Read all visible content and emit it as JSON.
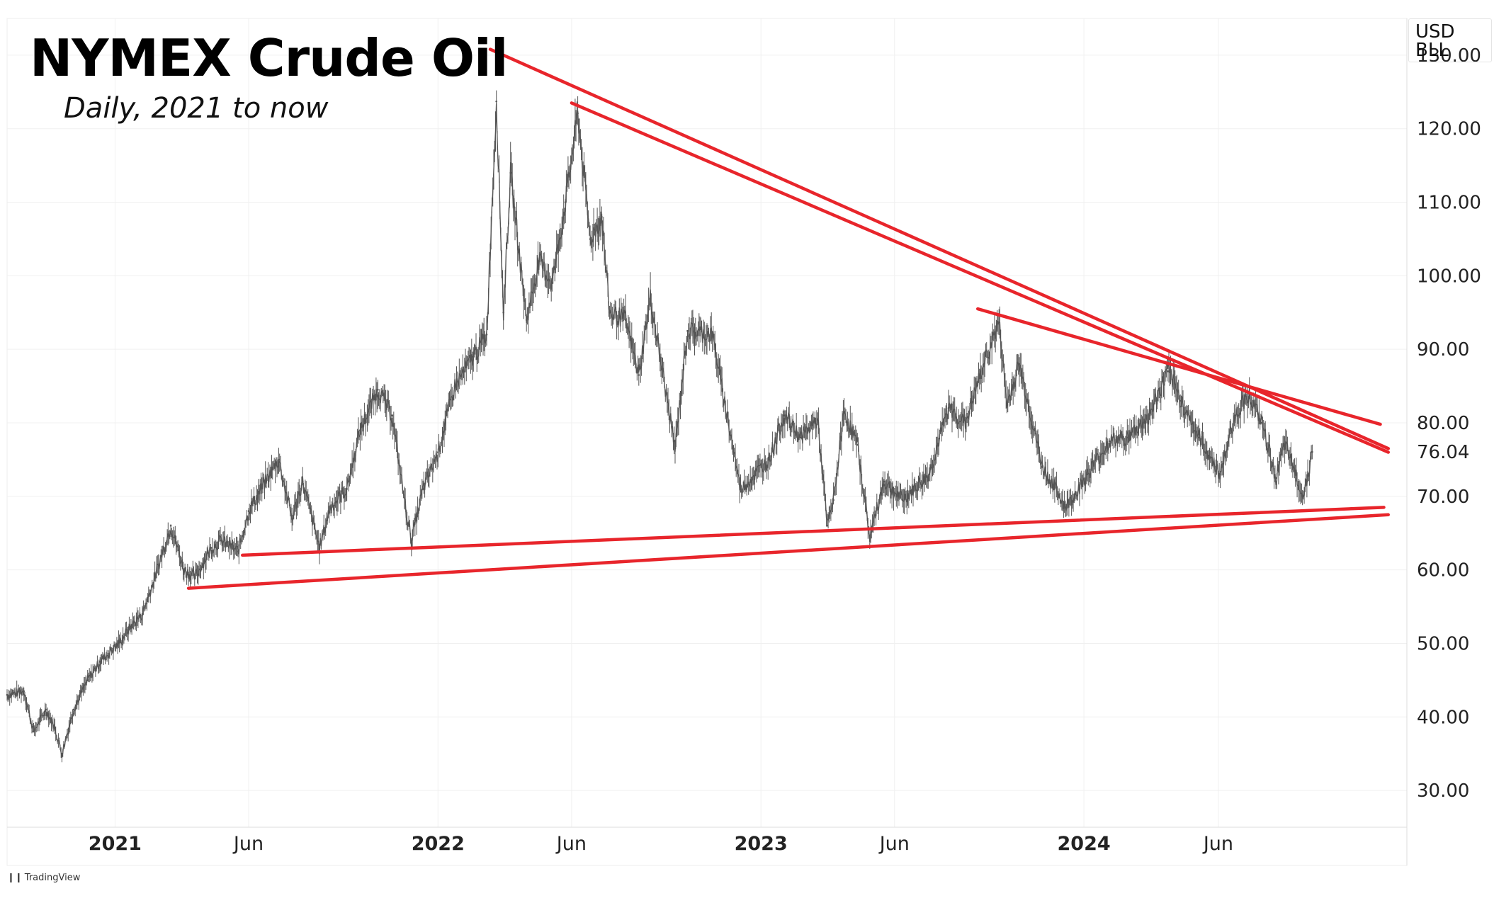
{
  "header": {
    "title": "NYMEX Crude Oil",
    "subtitle": "Daily, 2021 to now",
    "unit_line1": "USD",
    "unit_line2": "BLL"
  },
  "footer": {
    "logo": "❙❙",
    "brand": "TradingView"
  },
  "colors": {
    "price": "#555555",
    "trendline": "#e8252b",
    "grid": "#f0f0f0"
  },
  "chart_data": {
    "type": "line",
    "ylim": [
      25,
      135
    ],
    "xlim": [
      "2020-09-01",
      "2024-12-31"
    ],
    "grid": true,
    "yticks": [
      {
        "value": 130,
        "label": "130.00"
      },
      {
        "value": 120,
        "label": "120.00"
      },
      {
        "value": 110,
        "label": "110.00"
      },
      {
        "value": 100,
        "label": "100.00"
      },
      {
        "value": 90,
        "label": "90.00"
      },
      {
        "value": 80,
        "label": "80.00"
      },
      {
        "value": 70,
        "label": "70.00"
      },
      {
        "value": 60,
        "label": "60.00"
      },
      {
        "value": 50,
        "label": "50.00"
      },
      {
        "value": 40,
        "label": "40.00"
      },
      {
        "value": 30,
        "label": "30.00"
      }
    ],
    "xticks": [
      {
        "date": "2021-01-01",
        "label": "2021",
        "year": true
      },
      {
        "date": "2021-06-01",
        "label": "Jun",
        "year": false
      },
      {
        "date": "2022-01-01",
        "label": "2022",
        "year": true
      },
      {
        "date": "2022-06-01",
        "label": "Jun",
        "year": false
      },
      {
        "date": "2023-01-01",
        "label": "2023",
        "year": true
      },
      {
        "date": "2023-06-01",
        "label": "Jun",
        "year": false
      },
      {
        "date": "2024-01-01",
        "label": "2024",
        "year": true
      },
      {
        "date": "2024-06-01",
        "label": "Jun",
        "year": false
      }
    ],
    "last_price": {
      "value": 76.04,
      "label": "76.04"
    },
    "series": [
      {
        "values": [
          [
            "2020-09-01",
            43.0
          ],
          [
            "2020-09-20",
            43.5
          ],
          [
            "2020-10-01",
            38.0
          ],
          [
            "2020-10-15",
            41.0
          ],
          [
            "2020-10-25",
            38.5
          ],
          [
            "2020-11-02",
            35.0
          ],
          [
            "2020-11-15",
            41.0
          ],
          [
            "2020-12-01",
            45.0
          ],
          [
            "2020-12-15",
            47.5
          ],
          [
            "2021-01-05",
            50.0
          ],
          [
            "2021-01-20",
            52.5
          ],
          [
            "2021-02-01",
            54.0
          ],
          [
            "2021-02-15",
            59.0
          ],
          [
            "2021-03-05",
            66.0
          ],
          [
            "2021-03-20",
            60.0
          ],
          [
            "2021-04-01",
            59.0
          ],
          [
            "2021-04-20",
            63.0
          ],
          [
            "2021-05-01",
            64.0
          ],
          [
            "2021-05-20",
            62.5
          ],
          [
            "2021-06-01",
            68.0
          ],
          [
            "2021-06-20",
            72.0
          ],
          [
            "2021-07-05",
            75.0
          ],
          [
            "2021-07-20",
            67.0
          ],
          [
            "2021-08-01",
            72.0
          ],
          [
            "2021-08-20",
            63.0
          ],
          [
            "2021-09-01",
            68.5
          ],
          [
            "2021-09-20",
            71.0
          ],
          [
            "2021-10-05",
            79.0
          ],
          [
            "2021-10-25",
            84.5
          ],
          [
            "2021-11-10",
            81.0
          ],
          [
            "2021-11-26",
            68.0
          ],
          [
            "2021-12-02",
            64.0
          ],
          [
            "2021-12-15",
            71.0
          ],
          [
            "2022-01-01",
            76.0
          ],
          [
            "2022-01-20",
            85.0
          ],
          [
            "2022-02-10",
            89.0
          ],
          [
            "2022-02-25",
            92.0
          ],
          [
            "2022-03-08",
            123.7
          ],
          [
            "2022-03-16",
            95.0
          ],
          [
            "2022-03-24",
            114.0
          ],
          [
            "2022-04-11",
            94.0
          ],
          [
            "2022-04-25",
            102.0
          ],
          [
            "2022-05-10",
            99.0
          ],
          [
            "2022-05-25",
            110.0
          ],
          [
            "2022-06-08",
            122.1
          ],
          [
            "2022-06-22",
            105.0
          ],
          [
            "2022-07-05",
            108.0
          ],
          [
            "2022-07-14",
            95.0
          ],
          [
            "2022-08-01",
            94.0
          ],
          [
            "2022-08-16",
            86.5
          ],
          [
            "2022-08-29",
            97.0
          ],
          [
            "2022-09-26",
            76.5
          ],
          [
            "2022-10-10",
            92.5
          ],
          [
            "2022-11-07",
            92.0
          ],
          [
            "2022-12-09",
            71.0
          ],
          [
            "2023-01-10",
            75.0
          ],
          [
            "2023-01-27",
            81.0
          ],
          [
            "2023-02-15",
            78.0
          ],
          [
            "2023-03-06",
            80.5
          ],
          [
            "2023-03-17",
            66.0
          ],
          [
            "2023-03-24",
            69.5
          ],
          [
            "2023-04-05",
            81.5
          ],
          [
            "2023-04-20",
            77.0
          ],
          [
            "2023-05-04",
            64.5
          ],
          [
            "2023-05-20",
            72.0
          ],
          [
            "2023-06-10",
            69.5
          ],
          [
            "2023-07-10",
            73.0
          ],
          [
            "2023-08-01",
            82.0
          ],
          [
            "2023-08-20",
            80.0
          ],
          [
            "2023-09-10",
            88.0
          ],
          [
            "2023-09-27",
            93.7
          ],
          [
            "2023-10-06",
            82.5
          ],
          [
            "2023-10-20",
            88.0
          ],
          [
            "2023-11-15",
            74.0
          ],
          [
            "2023-12-12",
            68.5
          ],
          [
            "2024-01-05",
            73.0
          ],
          [
            "2024-01-30",
            77.5
          ],
          [
            "2024-02-20",
            78.0
          ],
          [
            "2024-03-15",
            81.0
          ],
          [
            "2024-04-05",
            87.0
          ],
          [
            "2024-04-20",
            83.0
          ],
          [
            "2024-05-10",
            78.0
          ],
          [
            "2024-06-03",
            73.0
          ],
          [
            "2024-06-20",
            81.0
          ],
          [
            "2024-07-05",
            84.0
          ],
          [
            "2024-07-20",
            80.0
          ],
          [
            "2024-08-05",
            72.5
          ],
          [
            "2024-08-15",
            77.0
          ],
          [
            "2024-08-26",
            73.5
          ],
          [
            "2024-09-05",
            70.0
          ],
          [
            "2024-09-15",
            76.04
          ]
        ]
      }
    ],
    "trendlines": [
      {
        "from": [
          "2022-03-01",
          130.8
        ],
        "to": [
          "2024-12-10",
          76.5
        ]
      },
      {
        "from": [
          "2022-06-01",
          123.5
        ],
        "to": [
          "2024-12-10",
          76.0
        ]
      },
      {
        "from": [
          "2023-09-03",
          95.5
        ],
        "to": [
          "2024-12-01",
          79.8
        ]
      },
      {
        "from": [
          "2021-05-25",
          62.0
        ],
        "to": [
          "2024-12-05",
          68.5
        ]
      },
      {
        "from": [
          "2021-03-25",
          57.5
        ],
        "to": [
          "2024-12-10",
          67.5
        ]
      }
    ]
  }
}
